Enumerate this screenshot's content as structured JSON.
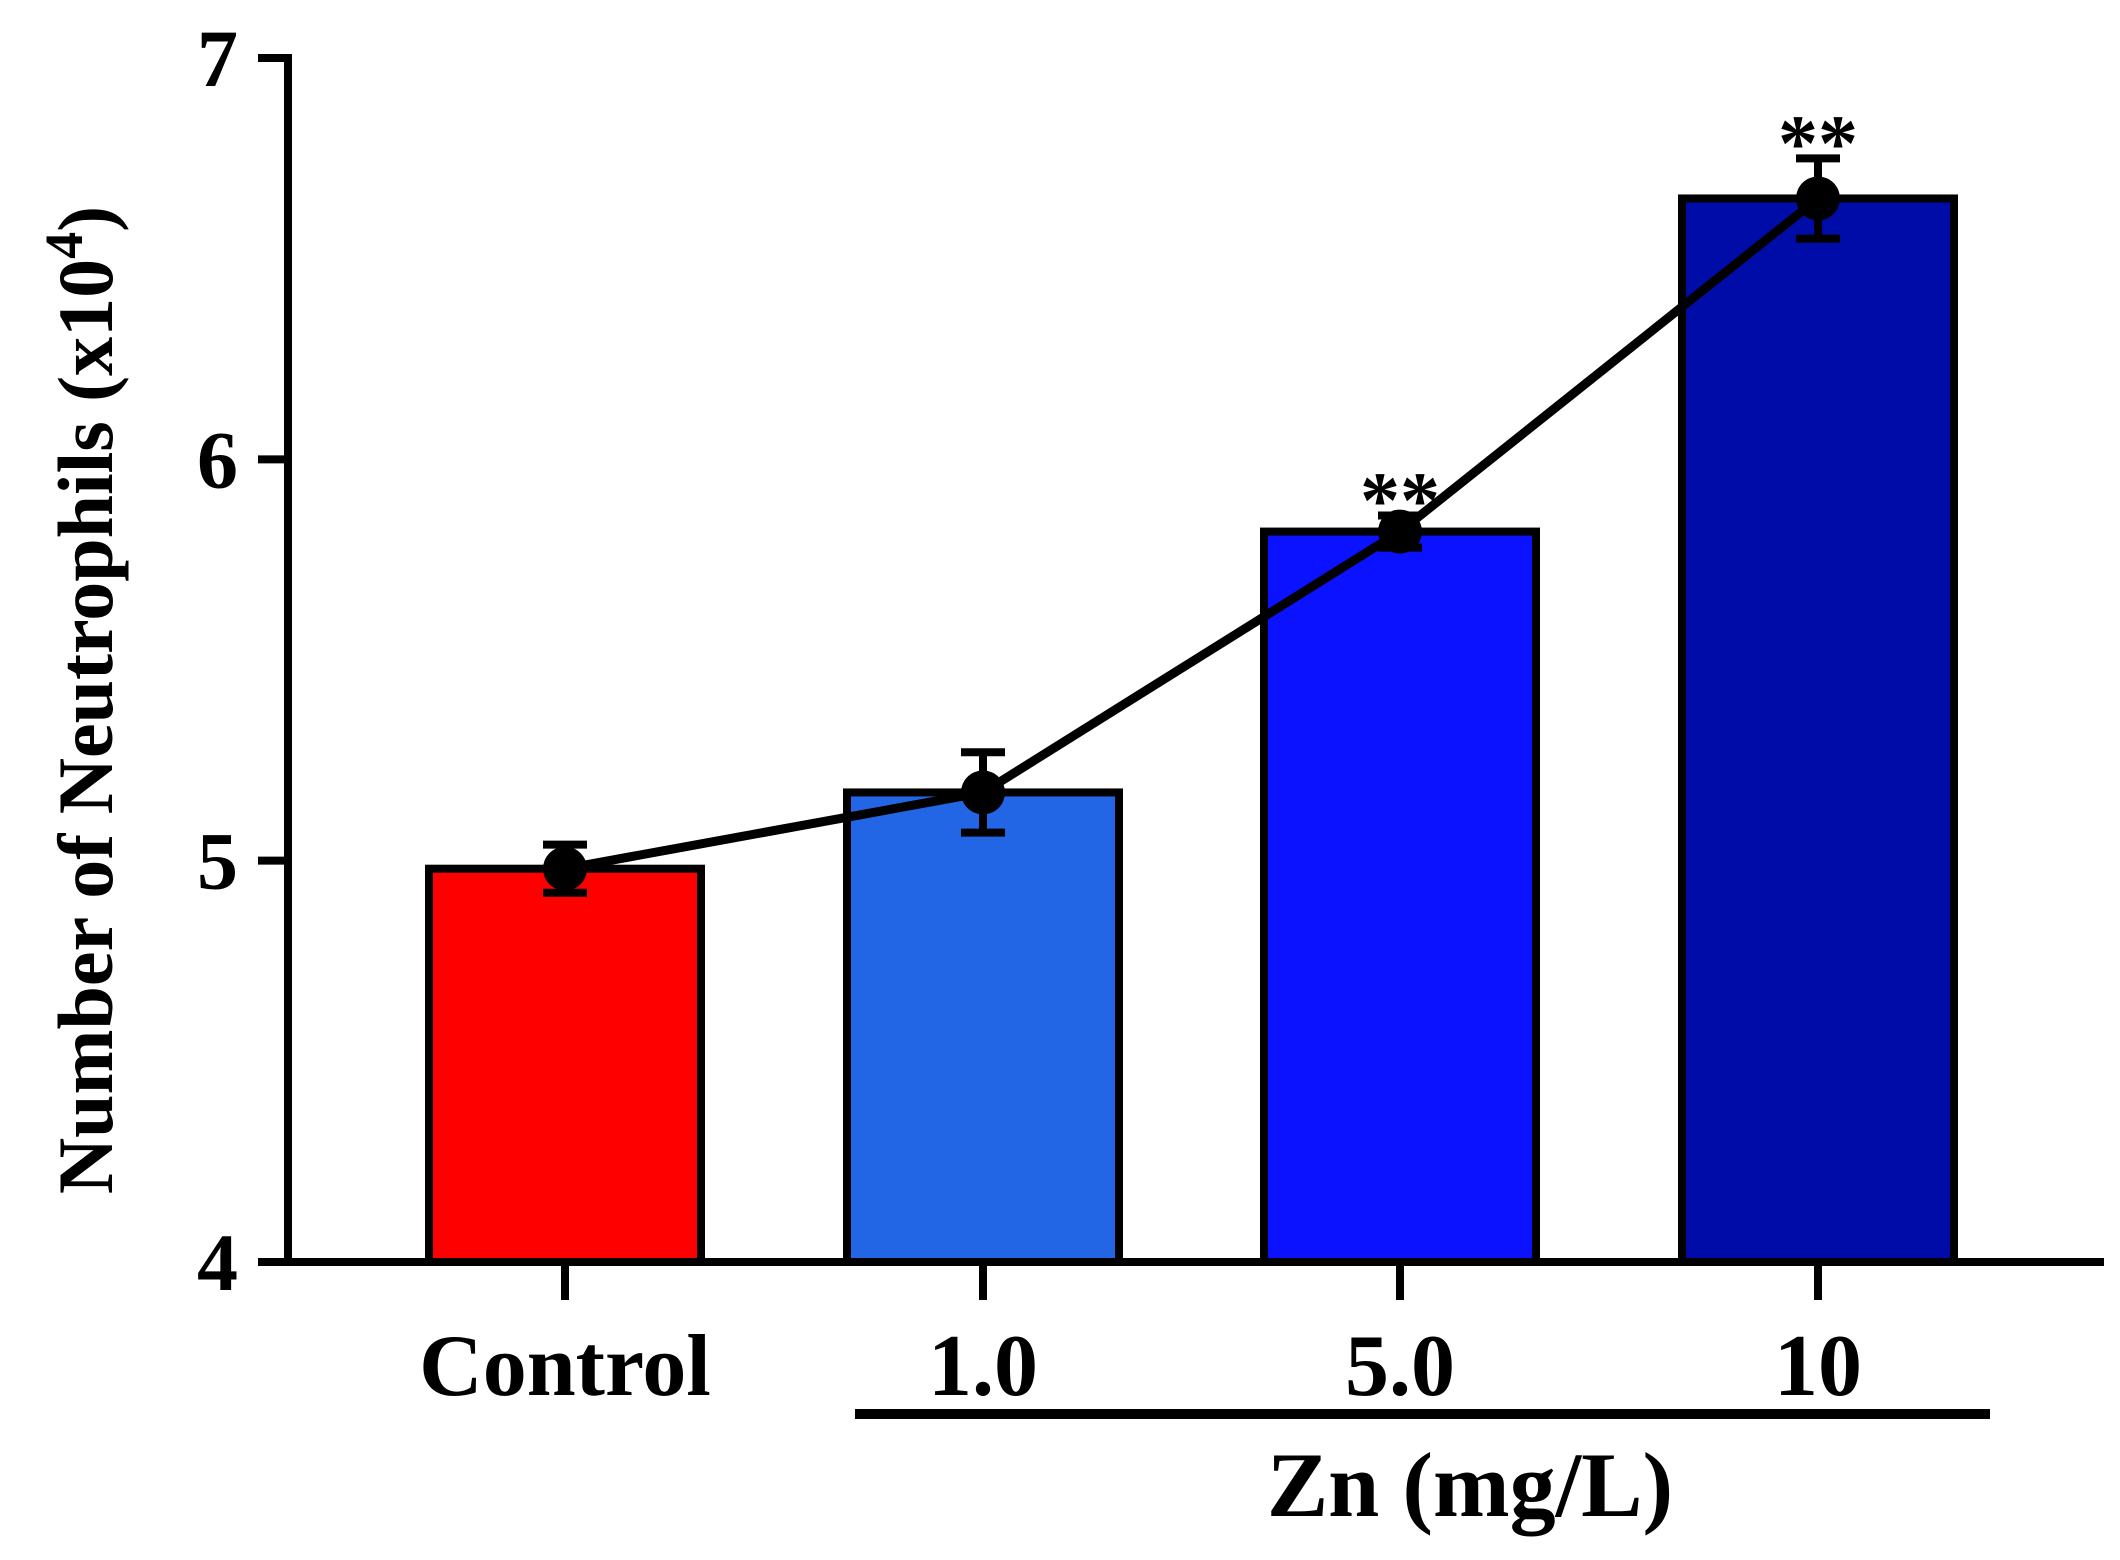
{
  "chart_data": {
    "type": "bar",
    "title": "",
    "categories": [
      "Control",
      "1.0",
      "5.0",
      "10"
    ],
    "values": [
      4.98,
      5.17,
      5.82,
      6.65
    ],
    "error": [
      0.06,
      0.1,
      0.04,
      0.1
    ],
    "line_overlay": true,
    "bar_colors": [
      "#ff0000",
      "#2266e6",
      "#0a12ff",
      "#000ca8"
    ],
    "significance": [
      "",
      "",
      "**",
      "**"
    ],
    "ylabel_main": "Number of  Neutrophils (x10",
    "ylabel_sup": "4",
    "ylabel_close": ")",
    "xlabel": "Zn (mg/L)",
    "ylim": [
      4,
      7
    ],
    "yticks": [
      "4",
      "5",
      "6",
      "7"
    ],
    "grid": false
  }
}
